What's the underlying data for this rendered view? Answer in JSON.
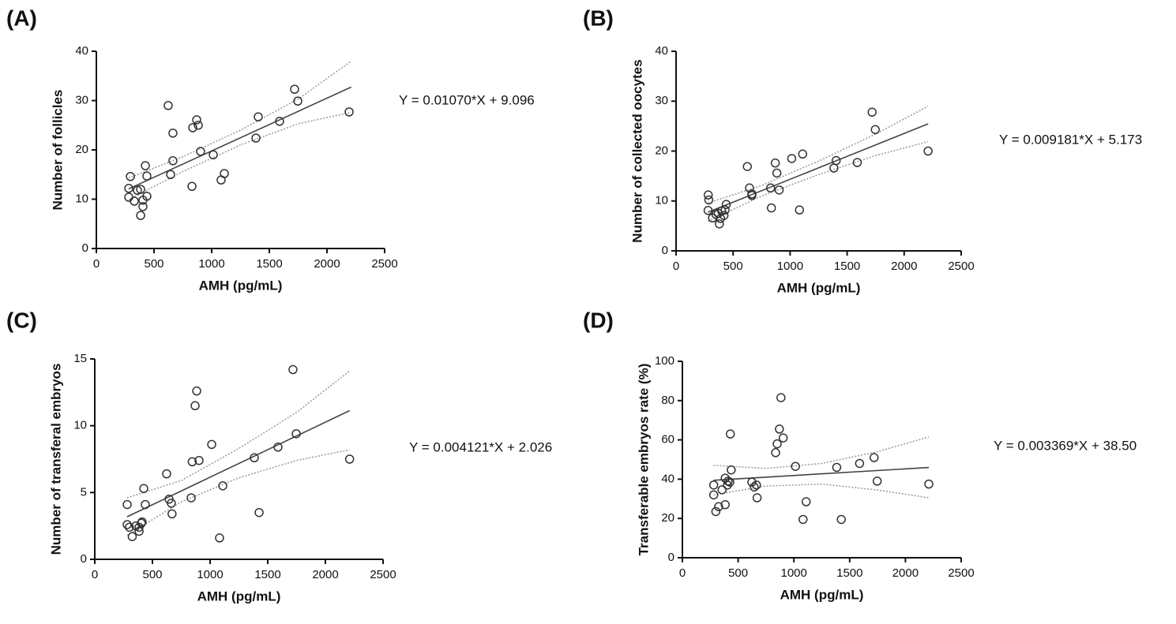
{
  "chart_data": [
    {
      "type": "scatter",
      "panel": "(A)",
      "equation": "Y = 0.01070*X + 9.096",
      "x_label": "AMH (pg/mL)",
      "y_label": "Number of follicles",
      "color": "#333333",
      "x": [
        281,
        281,
        295,
        329,
        356,
        384,
        384,
        404,
        404,
        425,
        438,
        438,
        623,
        644,
        664,
        664,
        836,
        829,
        870,
        884,
        904,
        1014,
        1082,
        1110,
        1384,
        1404,
        1589,
        1719,
        1747,
        2192
      ],
      "values": [
        12.2,
        10.4,
        14.6,
        9.6,
        11.8,
        12,
        6.7,
        8.5,
        9.8,
        16.8,
        14.7,
        10.6,
        29,
        15,
        23.4,
        17.8,
        24.5,
        12.6,
        26.1,
        25,
        19.7,
        19,
        13.9,
        15.2,
        22.4,
        26.7,
        25.8,
        32.3,
        29.9,
        27.7
      ],
      "xlim": [
        0,
        2500
      ],
      "xticks": [
        0,
        500,
        1000,
        1500,
        2000,
        2500
      ],
      "ylim": [
        0,
        40
      ],
      "yticks": [
        0,
        10,
        20,
        30,
        40
      ],
      "fit": {
        "x": [
          280,
          2210
        ],
        "y": [
          12.09,
          32.74
        ]
      },
      "ci_upper": {
        "x": [
          280,
          750,
          1250,
          1750,
          2210
        ],
        "y": [
          14.3,
          18.6,
          24.0,
          30.3,
          38.0
        ]
      },
      "ci_lower": {
        "x": [
          280,
          750,
          1250,
          1750,
          2210
        ],
        "y": [
          9.9,
          15.6,
          21.0,
          25.3,
          27.6
        ]
      }
    },
    {
      "type": "scatter",
      "panel": "(B)",
      "equation": "Y = 0.009181*X + 5.173",
      "x_label": "AMH (pg/mL)",
      "y_label": "Number of collected oocytes",
      "color": "#333333",
      "x": [
        282,
        287,
        281,
        320,
        350,
        370,
        380,
        390,
        400,
        420,
        430,
        440,
        625,
        644,
        665,
        665,
        836,
        829,
        870,
        884,
        904,
        1014,
        1082,
        1110,
        1384,
        1404,
        1589,
        1719,
        1747,
        2210
      ],
      "values": [
        11.2,
        10.2,
        8.1,
        6.6,
        7.3,
        7.5,
        5.4,
        6.5,
        8,
        7.1,
        8.2,
        9.3,
        16.9,
        12.6,
        11.4,
        11.1,
        8.6,
        12.6,
        17.6,
        15.6,
        12.2,
        18.5,
        8.2,
        19.4,
        16.6,
        18.1,
        17.7,
        27.8,
        24.3,
        20
      ],
      "xlim": [
        0,
        2500
      ],
      "xticks": [
        0,
        500,
        1000,
        1500,
        2000,
        2500
      ],
      "ylim": [
        0,
        40
      ],
      "yticks": [
        0,
        10,
        20,
        30,
        40
      ],
      "fit": {
        "x": [
          280,
          2210
        ],
        "y": [
          7.74,
          25.46
        ]
      },
      "ci_upper": {
        "x": [
          280,
          750,
          1250,
          1750,
          2210
        ],
        "y": [
          9.6,
          13.1,
          18.0,
          23.4,
          29.0
        ]
      },
      "ci_lower": {
        "x": [
          280,
          750,
          1250,
          1750,
          2210
        ],
        "y": [
          5.9,
          11.0,
          15.3,
          19.1,
          21.9
        ]
      }
    },
    {
      "type": "scatter",
      "panel": "(C)",
      "equation": "Y = 0.004121*X + 2.026",
      "x_label": "AMH (pg/mL)",
      "y_label": "Number of transferal embryos",
      "color": "#333333",
      "x": [
        281,
        281,
        300,
        325,
        356,
        384,
        384,
        404,
        410,
        425,
        438,
        623,
        644,
        664,
        670,
        836,
        845,
        870,
        884,
        904,
        1014,
        1082,
        1110,
        1384,
        1425,
        1589,
        1719,
        1747,
        2210
      ],
      "values": [
        4.1,
        2.6,
        2.4,
        1.7,
        2.5,
        2.4,
        2.1,
        2.7,
        2.8,
        5.3,
        4.1,
        6.4,
        4.5,
        4.2,
        3.4,
        4.6,
        7.3,
        11.5,
        12.6,
        7.4,
        8.6,
        1.6,
        5.5,
        7.6,
        3.5,
        8.4,
        14.2,
        9.4,
        7.5
      ],
      "xlim": [
        0,
        2500
      ],
      "xticks": [
        0,
        500,
        1000,
        1500,
        2000,
        2500
      ],
      "ylim": [
        0,
        15
      ],
      "yticks": [
        0,
        5,
        10,
        15
      ],
      "fit": {
        "x": [
          280,
          2210
        ],
        "y": [
          3.18,
          11.13
        ]
      },
      "ci_upper": {
        "x": [
          280,
          750,
          1250,
          1750,
          2210
        ],
        "y": [
          4.6,
          5.9,
          8.3,
          11.0,
          14.1
        ]
      },
      "ci_lower": {
        "x": [
          280,
          750,
          1250,
          1750,
          2210
        ],
        "y": [
          1.8,
          4.3,
          6.1,
          7.4,
          8.2
        ]
      }
    },
    {
      "type": "scatter",
      "panel": "(D)",
      "equation": "Y = 0.003369*X + 38.50",
      "x_label": "AMH (pg/mL)",
      "y_label": "Transferable embryos rate (%)",
      "color": "#333333",
      "x": [
        281,
        281,
        300,
        325,
        356,
        384,
        384,
        404,
        410,
        425,
        430,
        438,
        623,
        644,
        664,
        670,
        836,
        850,
        870,
        884,
        904,
        1014,
        1082,
        1110,
        1384,
        1425,
        1589,
        1719,
        1747,
        2210
      ],
      "values": [
        37,
        32,
        23.5,
        26,
        34.6,
        40.5,
        27,
        37,
        39,
        38.5,
        63,
        44.7,
        38.5,
        36,
        37,
        30.5,
        53.5,
        58,
        65.5,
        81.5,
        61,
        46.5,
        19.5,
        28.5,
        46,
        19.5,
        48,
        51,
        39,
        37.5
      ],
      "xlim": [
        0,
        2500
      ],
      "xticks": [
        0,
        500,
        1000,
        1500,
        2000,
        2500
      ],
      "ylim": [
        0,
        100
      ],
      "yticks": [
        0,
        20,
        40,
        60,
        80,
        100
      ],
      "fit": {
        "x": [
          280,
          2210
        ],
        "y": [
          39.44,
          45.95
        ]
      },
      "ci_upper": {
        "x": [
          280,
          750,
          1250,
          1750,
          2210
        ],
        "y": [
          47,
          45.5,
          48,
          54,
          61.5
        ]
      },
      "ci_lower": {
        "x": [
          280,
          750,
          1250,
          1750,
          2210
        ],
        "y": [
          32,
          36.5,
          37.5,
          34.5,
          30.5
        ]
      }
    }
  ]
}
